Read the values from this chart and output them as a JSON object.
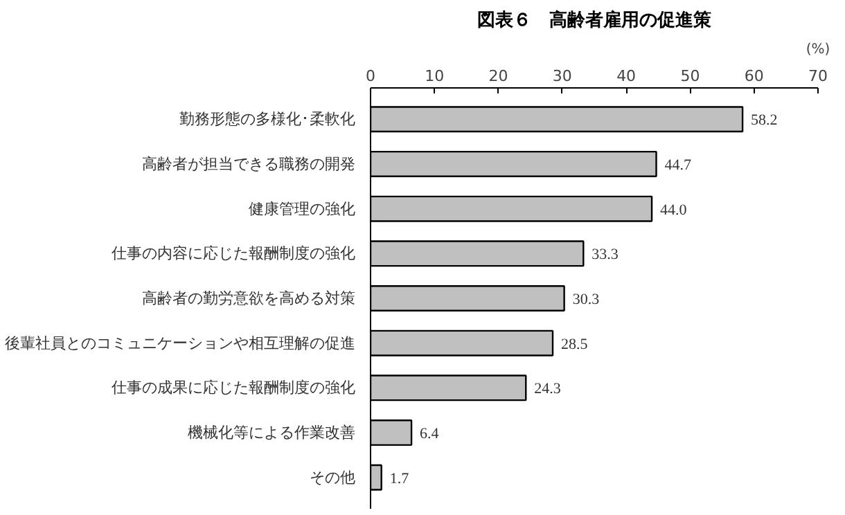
{
  "chart_data": {
    "type": "bar",
    "orientation": "horizontal",
    "title": "図表６　高齢者雇用の促進策",
    "xlabel": "(%)",
    "categories": [
      "勤務形態の多様化･柔軟化",
      "高齢者が担当できる職務の開発",
      "健康管理の強化",
      "仕事の内容に応じた報酬制度の強化",
      "高齢者の勤労意欲を高める対策",
      "後輩社員とのコミュニケーションや相互理解の促進",
      "仕事の成果に応じた報酬制度の強化",
      "機械化等による作業改善",
      "その他"
    ],
    "values": [
      58.2,
      44.7,
      44.0,
      33.3,
      30.3,
      28.5,
      24.3,
      6.4,
      1.7
    ],
    "value_labels": [
      "58.2",
      "44.7",
      "44.0",
      "33.3",
      "30.3",
      "28.5",
      "24.3",
      "6.4",
      "1.7"
    ],
    "color": "#c0c0c0",
    "xlim": [
      0,
      70
    ],
    "xticks": [
      0,
      10,
      20,
      30,
      40,
      50,
      60,
      70
    ],
    "grid": false
  }
}
